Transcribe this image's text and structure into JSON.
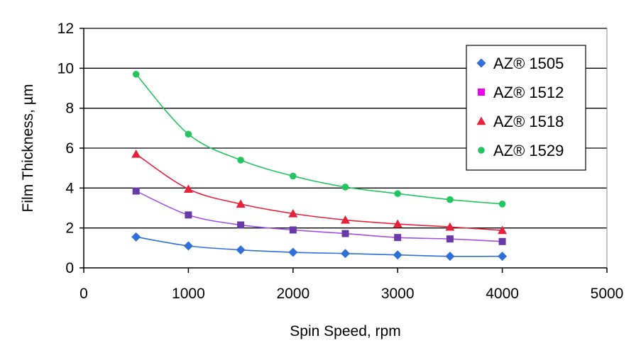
{
  "chart_data": {
    "type": "scatter",
    "title": "",
    "xlabel": "Spin Speed, rpm",
    "ylabel": "Film Thickness, µm",
    "xlim": [
      0,
      5000
    ],
    "ylim": [
      0,
      12
    ],
    "x_ticks": [
      0,
      1000,
      2000,
      3000,
      4000,
      5000
    ],
    "y_ticks": [
      0,
      2,
      4,
      6,
      8,
      10,
      12
    ],
    "grid": "horizontal",
    "legend_position": "top-right",
    "x": [
      500,
      1000,
      1500,
      2000,
      2500,
      3000,
      3500,
      4000
    ],
    "series": [
      {
        "name": "AZ® 1505",
        "marker": "diamond",
        "color": "#2e6fd8",
        "values": [
          1.55,
          1.1,
          0.9,
          0.78,
          0.72,
          0.65,
          0.58,
          0.58
        ]
      },
      {
        "name": "AZ® 1512",
        "marker": "square",
        "color": "#ee00ee",
        "line_color": "#a050e8",
        "marker_color": "#6a3aa8",
        "values": [
          3.85,
          2.65,
          2.15,
          1.9,
          1.72,
          1.52,
          1.45,
          1.32
        ]
      },
      {
        "name": "AZ® 1518",
        "marker": "triangle",
        "color": "#e8213a",
        "values": [
          5.7,
          3.95,
          3.2,
          2.72,
          2.4,
          2.2,
          2.05,
          1.88
        ]
      },
      {
        "name": "AZ® 1529",
        "marker": "circle",
        "color": "#22c55e",
        "values": [
          9.7,
          6.7,
          5.4,
          4.6,
          4.05,
          3.72,
          3.42,
          3.2
        ]
      }
    ]
  }
}
